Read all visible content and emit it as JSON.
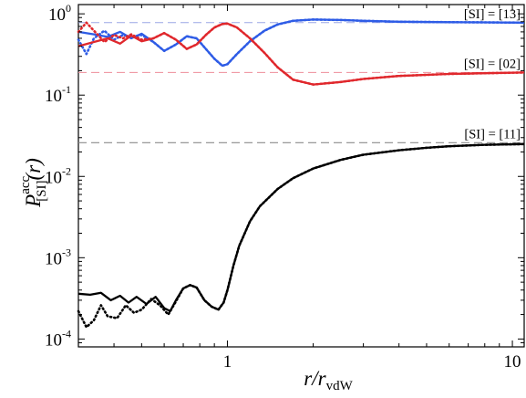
{
  "chart_data": {
    "type": "line",
    "xscale": "log",
    "yscale": "log",
    "xlim": [
      0.3,
      11
    ],
    "ylim": [
      8e-05,
      1.3
    ],
    "xticks": [
      {
        "value": 1,
        "label": "1"
      },
      {
        "value": 10,
        "label": "10"
      }
    ],
    "yticks": [
      {
        "value": 0.0001,
        "base": "10",
        "exp": "-4"
      },
      {
        "value": 0.001,
        "base": "10",
        "exp": "-3"
      },
      {
        "value": 0.01,
        "base": "10",
        "exp": "-2"
      },
      {
        "value": 0.1,
        "base": "10",
        "exp": "-1"
      },
      {
        "value": 1,
        "base": "10",
        "exp": "0"
      }
    ],
    "xlabel": {
      "main": "r/r",
      "sub": "vdW"
    },
    "ylabel": {
      "main": "P",
      "sup": "acc",
      "sub": "[SI]",
      "arg": "(r)"
    },
    "grid": false,
    "asymptotes": [
      {
        "y": 0.78,
        "color": "#9aa6e6"
      },
      {
        "y": 0.19,
        "color": "#ee8d9a"
      },
      {
        "y": 0.026,
        "color": "#8c8c8c"
      }
    ],
    "annotations": [
      {
        "text": "[SI] = [13]",
        "y": 0.78
      },
      {
        "text": "[SI] = [02]",
        "y": 0.19
      },
      {
        "text": "[SI] = [11]",
        "y": 0.026
      }
    ],
    "series": [
      {
        "color": "#2e5ce6",
        "style": "solid",
        "points": [
          [
            0.3,
            0.6
          ],
          [
            0.34,
            0.56
          ],
          [
            0.38,
            0.52
          ],
          [
            0.42,
            0.6
          ],
          [
            0.46,
            0.5
          ],
          [
            0.5,
            0.57
          ],
          [
            0.55,
            0.45
          ],
          [
            0.6,
            0.35
          ],
          [
            0.66,
            0.42
          ],
          [
            0.72,
            0.53
          ],
          [
            0.78,
            0.5
          ],
          [
            0.84,
            0.37
          ],
          [
            0.9,
            0.28
          ],
          [
            0.96,
            0.23
          ],
          [
            1.0,
            0.24
          ],
          [
            1.08,
            0.32
          ],
          [
            1.2,
            0.46
          ],
          [
            1.35,
            0.62
          ],
          [
            1.5,
            0.74
          ],
          [
            1.7,
            0.82
          ],
          [
            2.0,
            0.85
          ],
          [
            2.5,
            0.84
          ],
          [
            3.0,
            0.82
          ],
          [
            4.0,
            0.8
          ],
          [
            6.0,
            0.79
          ],
          [
            8.0,
            0.785
          ],
          [
            11.0,
            0.78
          ]
        ]
      },
      {
        "color": "#2e5ce6",
        "style": "dotted",
        "points": [
          [
            0.3,
            0.48
          ],
          [
            0.32,
            0.32
          ],
          [
            0.34,
            0.5
          ],
          [
            0.37,
            0.62
          ],
          [
            0.4,
            0.48
          ],
          [
            0.43,
            0.55
          ],
          [
            0.46,
            0.52
          ],
          [
            0.5,
            0.55
          ],
          [
            0.55,
            0.45
          ],
          [
            0.6,
            0.35
          ],
          [
            0.66,
            0.42
          ],
          [
            0.72,
            0.53
          ],
          [
            0.78,
            0.5
          ],
          [
            0.84,
            0.37
          ],
          [
            0.9,
            0.28
          ],
          [
            0.96,
            0.23
          ],
          [
            1.0,
            0.24
          ],
          [
            1.08,
            0.32
          ],
          [
            1.2,
            0.46
          ],
          [
            1.35,
            0.62
          ],
          [
            1.5,
            0.74
          ],
          [
            1.7,
            0.82
          ],
          [
            2.0,
            0.85
          ],
          [
            2.5,
            0.84
          ],
          [
            3.0,
            0.82
          ],
          [
            4.0,
            0.8
          ],
          [
            6.0,
            0.79
          ],
          [
            8.0,
            0.785
          ],
          [
            11.0,
            0.78
          ]
        ]
      },
      {
        "color": "#e0282d",
        "style": "solid",
        "points": [
          [
            0.3,
            0.4
          ],
          [
            0.34,
            0.45
          ],
          [
            0.38,
            0.5
          ],
          [
            0.42,
            0.43
          ],
          [
            0.46,
            0.54
          ],
          [
            0.5,
            0.46
          ],
          [
            0.55,
            0.5
          ],
          [
            0.6,
            0.58
          ],
          [
            0.66,
            0.48
          ],
          [
            0.72,
            0.37
          ],
          [
            0.78,
            0.42
          ],
          [
            0.84,
            0.55
          ],
          [
            0.9,
            0.68
          ],
          [
            0.96,
            0.75
          ],
          [
            1.0,
            0.76
          ],
          [
            1.08,
            0.68
          ],
          [
            1.2,
            0.5
          ],
          [
            1.35,
            0.33
          ],
          [
            1.5,
            0.22
          ],
          [
            1.7,
            0.155
          ],
          [
            2.0,
            0.135
          ],
          [
            2.5,
            0.145
          ],
          [
            3.0,
            0.158
          ],
          [
            4.0,
            0.172
          ],
          [
            6.0,
            0.182
          ],
          [
            8.0,
            0.186
          ],
          [
            11.0,
            0.19
          ]
        ]
      },
      {
        "color": "#e0282d",
        "style": "dotted",
        "points": [
          [
            0.3,
            0.6
          ],
          [
            0.32,
            0.78
          ],
          [
            0.34,
            0.62
          ],
          [
            0.37,
            0.45
          ],
          [
            0.4,
            0.55
          ],
          [
            0.43,
            0.5
          ],
          [
            0.46,
            0.56
          ],
          [
            0.5,
            0.48
          ],
          [
            0.55,
            0.5
          ],
          [
            0.6,
            0.58
          ],
          [
            0.66,
            0.48
          ],
          [
            0.72,
            0.37
          ],
          [
            0.78,
            0.42
          ],
          [
            0.84,
            0.55
          ],
          [
            0.9,
            0.68
          ],
          [
            0.96,
            0.75
          ],
          [
            1.0,
            0.76
          ],
          [
            1.08,
            0.68
          ],
          [
            1.2,
            0.5
          ],
          [
            1.35,
            0.33
          ],
          [
            1.5,
            0.22
          ],
          [
            1.7,
            0.155
          ],
          [
            2.0,
            0.135
          ],
          [
            2.5,
            0.145
          ],
          [
            3.0,
            0.158
          ],
          [
            4.0,
            0.172
          ],
          [
            6.0,
            0.182
          ],
          [
            8.0,
            0.186
          ],
          [
            11.0,
            0.19
          ]
        ]
      },
      {
        "color": "#000000",
        "style": "solid",
        "points": [
          [
            0.3,
            0.00036
          ],
          [
            0.33,
            0.00035
          ],
          [
            0.36,
            0.00037
          ],
          [
            0.39,
            0.0003
          ],
          [
            0.42,
            0.00034
          ],
          [
            0.45,
            0.00028
          ],
          [
            0.48,
            0.00033
          ],
          [
            0.52,
            0.00027
          ],
          [
            0.56,
            0.00033
          ],
          [
            0.6,
            0.00024
          ],
          [
            0.63,
            0.00022
          ],
          [
            0.66,
            0.0003
          ],
          [
            0.7,
            0.00042
          ],
          [
            0.74,
            0.00046
          ],
          [
            0.78,
            0.00043
          ],
          [
            0.83,
            0.0003
          ],
          [
            0.88,
            0.00025
          ],
          [
            0.93,
            0.00023
          ],
          [
            0.97,
            0.00028
          ],
          [
            1.0,
            0.0004
          ],
          [
            1.05,
            0.0008
          ],
          [
            1.1,
            0.0014
          ],
          [
            1.2,
            0.0028
          ],
          [
            1.3,
            0.0043
          ],
          [
            1.5,
            0.007
          ],
          [
            1.7,
            0.0095
          ],
          [
            2.0,
            0.0125
          ],
          [
            2.5,
            0.016
          ],
          [
            3.0,
            0.0185
          ],
          [
            4.0,
            0.021
          ],
          [
            5.0,
            0.0225
          ],
          [
            6.0,
            0.0235
          ],
          [
            8.0,
            0.0245
          ],
          [
            11.0,
            0.025
          ]
        ]
      },
      {
        "color": "#000000",
        "style": "dotted",
        "points": [
          [
            0.3,
            0.00022
          ],
          [
            0.32,
            0.00014
          ],
          [
            0.34,
            0.00017
          ],
          [
            0.36,
            0.00026
          ],
          [
            0.38,
            0.00019
          ],
          [
            0.41,
            0.00018
          ],
          [
            0.44,
            0.00026
          ],
          [
            0.47,
            0.00021
          ],
          [
            0.5,
            0.00023
          ],
          [
            0.54,
            0.00031
          ],
          [
            0.58,
            0.00026
          ],
          [
            0.62,
            0.0002
          ],
          [
            0.66,
            0.00029
          ],
          [
            0.7,
            0.00042
          ],
          [
            0.74,
            0.00046
          ],
          [
            0.78,
            0.00043
          ],
          [
            0.83,
            0.0003
          ],
          [
            0.88,
            0.00025
          ],
          [
            0.93,
            0.00023
          ],
          [
            0.97,
            0.00028
          ],
          [
            1.0,
            0.0004
          ],
          [
            1.05,
            0.0008
          ],
          [
            1.1,
            0.0014
          ],
          [
            1.2,
            0.0028
          ],
          [
            1.3,
            0.0043
          ],
          [
            1.5,
            0.007
          ],
          [
            1.7,
            0.0095
          ],
          [
            2.0,
            0.0125
          ],
          [
            2.5,
            0.016
          ],
          [
            3.0,
            0.0185
          ],
          [
            4.0,
            0.021
          ],
          [
            5.0,
            0.0225
          ],
          [
            6.0,
            0.0235
          ],
          [
            8.0,
            0.0245
          ],
          [
            11.0,
            0.025
          ]
        ]
      }
    ]
  }
}
